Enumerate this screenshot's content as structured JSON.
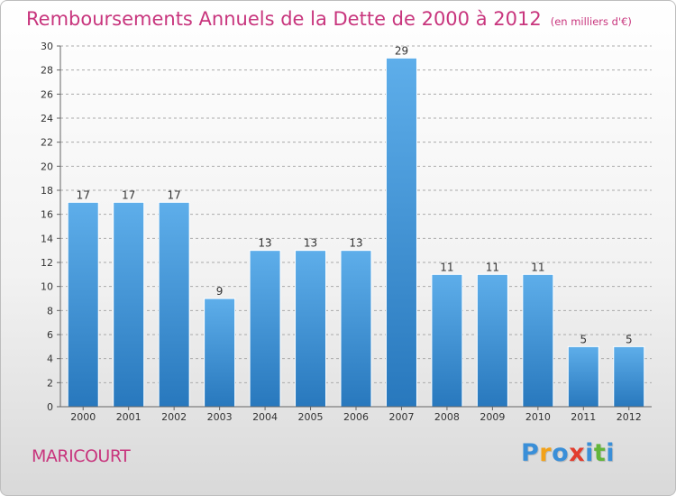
{
  "header": {
    "title": "Remboursements Annuels de la Dette de 2000 à 2012",
    "subtitle": "(en milliers d'€)"
  },
  "footer": {
    "place": "MARICOURT",
    "brand_letters": [
      {
        "char": "P",
        "color": "#3a8fd8"
      },
      {
        "char": "r",
        "color": "#f2a21a"
      },
      {
        "char": "o",
        "color": "#3a8fd8"
      },
      {
        "char": "x",
        "color": "#e23d2e"
      },
      {
        "char": "i",
        "color": "#3a8fd8"
      },
      {
        "char": "t",
        "color": "#63b53a"
      },
      {
        "char": "i",
        "color": "#3a8fd8"
      }
    ]
  },
  "colors": {
    "accent": "#c8357d",
    "bar_light": "#5eaeea",
    "bar_dark": "#2878bd",
    "grid": "#aaaaaa"
  },
  "chart_data": {
    "type": "bar",
    "categories": [
      "2000",
      "2001",
      "2002",
      "2003",
      "2004",
      "2005",
      "2006",
      "2007",
      "2008",
      "2009",
      "2010",
      "2011",
      "2012"
    ],
    "values": [
      17,
      17,
      17,
      9,
      13,
      13,
      13,
      29,
      11,
      11,
      11,
      5,
      5
    ],
    "data_labels": [
      "17",
      "17",
      "17",
      "9",
      "13",
      "13",
      "13",
      "29",
      "11",
      "11",
      "11",
      "5",
      "5"
    ],
    "ylim": [
      0,
      30
    ],
    "yticks": [
      0,
      2,
      4,
      6,
      8,
      10,
      12,
      14,
      16,
      18,
      20,
      22,
      24,
      26,
      28,
      30
    ],
    "grid": true,
    "grid_style": "dashed horizontal",
    "xlabel": "",
    "ylabel": ""
  }
}
